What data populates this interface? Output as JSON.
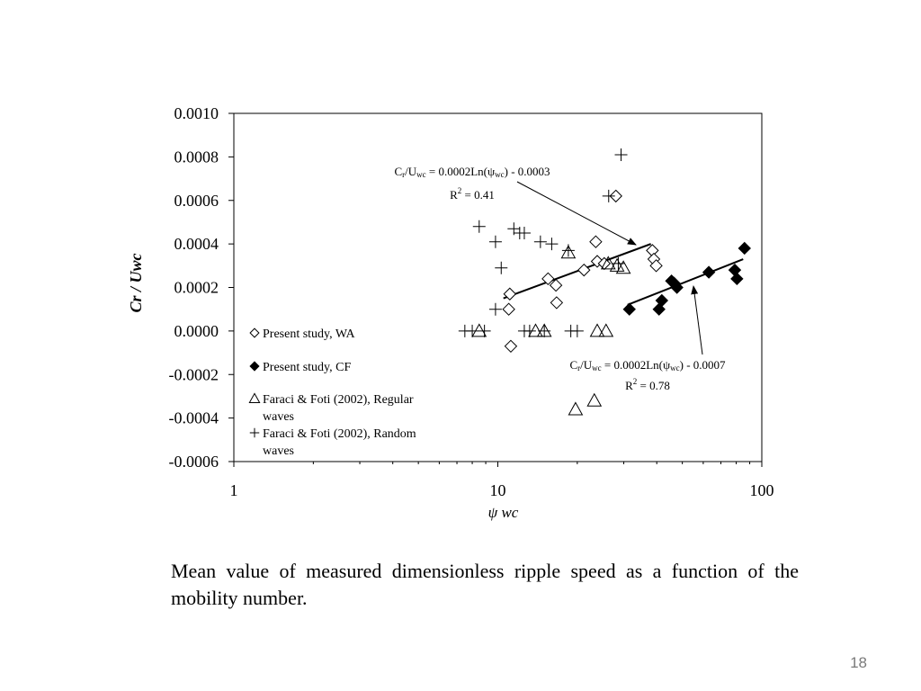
{
  "slide": {
    "caption": "Mean value of measured dimensionless ripple speed as a function of the mobility number.",
    "page_number": "18"
  },
  "chart_data": {
    "type": "scatter",
    "title": "",
    "xlabel": "ψ wc",
    "ylabel": "Cr / Uwc",
    "xscale": "log",
    "xlim": [
      1,
      100
    ],
    "ylim": [
      -0.0006,
      0.001
    ],
    "xticks": [
      "1",
      "10",
      "100"
    ],
    "yticks": [
      "0.0010",
      "0.0008",
      "0.0006",
      "0.0004",
      "0.0002",
      "0.0000",
      "-0.0002",
      "-0.0004",
      "-0.0006"
    ],
    "grid": false,
    "legend_position": "inside-left",
    "series": [
      {
        "name": "Present study, WA",
        "marker": "diamond-open",
        "points": [
          [
            11.1,
            0.00017
          ],
          [
            11.0,
            0.0001
          ],
          [
            11.2,
            -7e-05
          ],
          [
            15.5,
            0.00024
          ],
          [
            16.6,
            0.00021
          ],
          [
            16.7,
            0.00013
          ],
          [
            21.2,
            0.00028
          ],
          [
            23.5,
            0.00041
          ],
          [
            23.8,
            0.00032
          ],
          [
            25.3,
            0.00031
          ],
          [
            28.0,
            0.00062
          ],
          [
            38.5,
            0.00037
          ],
          [
            39.0,
            0.00033
          ],
          [
            39.8,
            0.0003
          ]
        ]
      },
      {
        "name": "Present study, CF",
        "marker": "diamond-filled",
        "points": [
          [
            31.5,
            0.0001
          ],
          [
            40.8,
            0.0001
          ],
          [
            41.8,
            0.00014
          ],
          [
            45.5,
            0.00023
          ],
          [
            46.5,
            0.00022
          ],
          [
            47.7,
            0.0002
          ],
          [
            63.0,
            0.00027
          ],
          [
            79.0,
            0.00028
          ],
          [
            80.5,
            0.00024
          ],
          [
            86.0,
            0.00038
          ]
        ]
      },
      {
        "name": "Faraci & Foti (2002), Regular waves",
        "marker": "triangle-open",
        "points": [
          [
            8.5,
            0.0
          ],
          [
            13.9,
            0.0
          ],
          [
            15.0,
            0.0
          ],
          [
            18.5,
            0.00036
          ],
          [
            23.8,
            0.0
          ],
          [
            25.7,
            0.0
          ],
          [
            26.2,
            0.00031
          ],
          [
            28.3,
            0.0003
          ],
          [
            29.9,
            0.00029
          ],
          [
            19.7,
            -0.00036
          ],
          [
            23.2,
            -0.00032
          ]
        ]
      },
      {
        "name": "Faraci & Foti (2002), Random waves",
        "marker": "plus",
        "points": [
          [
            7.5,
            0.0
          ],
          [
            8.0,
            0.0
          ],
          [
            8.9,
            0.0
          ],
          [
            8.5,
            0.00048
          ],
          [
            9.8,
            0.00041
          ],
          [
            10.3,
            0.00029
          ],
          [
            9.8,
            0.0001
          ],
          [
            11.5,
            0.00047
          ],
          [
            12.1,
            0.00045
          ],
          [
            12.6,
            0.00045
          ],
          [
            12.6,
            0.0
          ],
          [
            13.2,
            0.0
          ],
          [
            14.5,
            0.00041
          ],
          [
            15.0,
            0.0
          ],
          [
            16.0,
            0.0004
          ],
          [
            18.5,
            0.00037
          ],
          [
            18.9,
            0.0
          ],
          [
            20.0,
            0.0
          ],
          [
            26.3,
            0.00062
          ],
          [
            29.3,
            0.00081
          ],
          [
            28.6,
            0.00031
          ]
        ]
      }
    ],
    "trendlines": [
      {
        "series": "Present study, WA",
        "equation": "Cr/Uwc = 0.0002Ln(ψwc) - 0.0003",
        "r2": "R2 = 0.41",
        "x_range": [
          10.5,
          38.0
        ],
        "y_range": [
          0.00015,
          0.0004
        ]
      },
      {
        "series": "Present study, CF",
        "equation": "Cr/Uwc = 0.0002Ln(ψwc) - 0.0007",
        "r2": "R2 = 0.78",
        "x_range": [
          31.0,
          85.0
        ],
        "y_range": [
          0.00012,
          0.00033
        ]
      }
    ]
  }
}
